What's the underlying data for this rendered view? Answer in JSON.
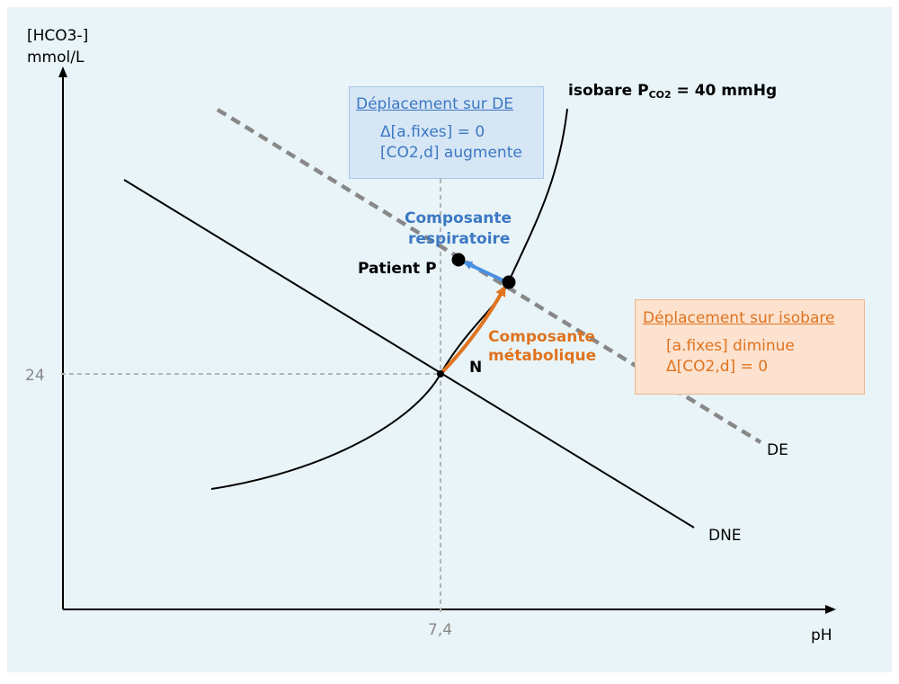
{
  "axes": {
    "y_label_line1": "[HCO3-]",
    "y_label_line2": "mmol/L",
    "x_label": "pH",
    "y_tick": "24",
    "x_tick": "7,4"
  },
  "curves": {
    "isobare_prefix": "isobare P",
    "isobare_sub": "CO2",
    "isobare_suffix": " = 40 mmHg",
    "de_label": "DE",
    "dne_label": "DNE"
  },
  "points": {
    "n_label": "N",
    "patient_label": "Patient P"
  },
  "components": {
    "respiratoire_line1": "Composante",
    "respiratoire_line2": "respiratoire",
    "metabolique_line1": "Composante",
    "metabolique_line2": "métabolique"
  },
  "box_de": {
    "title": "Déplacement sur DE",
    "line1": "Δ[a.fixes] = 0",
    "line2": "[CO2,d] augmente"
  },
  "box_isobare": {
    "title": "Déplacement sur isobare",
    "line1": "[a.fixes] diminue",
    "line2": "Δ[CO2,d] = 0"
  },
  "colors": {
    "background": "#e8f4f7",
    "blue": "#3c78c4",
    "orange": "#e0731f",
    "dashed_line": "#888888",
    "guide_line": "#b5b5b5",
    "ink": "#000000"
  }
}
